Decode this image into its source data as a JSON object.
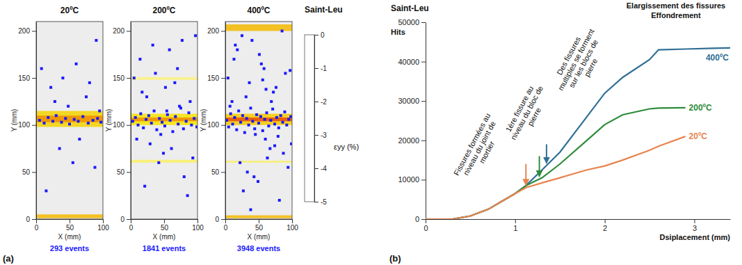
{
  "chart_data": [
    {
      "type": "scatter",
      "panel": "(a)",
      "title": "20ºC",
      "x_label": "X (mm)",
      "y_label": "Y (mm)",
      "events_label": "293 events",
      "xlim": [
        0,
        100
      ],
      "ylim": [
        0,
        210
      ],
      "xticks": [
        0,
        50,
        100
      ],
      "yticks": [
        0,
        50,
        100,
        150,
        200
      ],
      "color": "#1a1aff",
      "marker": "square",
      "x": [
        5,
        12,
        18,
        25,
        30,
        38,
        44,
        50,
        57,
        63,
        70,
        78,
        85,
        92,
        97,
        8,
        22,
        35,
        48,
        60,
        75,
        88,
        15,
        40,
        65,
        90,
        28,
        55,
        80,
        95
      ],
      "values": [
        105,
        102,
        108,
        104,
        110,
        103,
        107,
        101,
        106,
        104,
        109,
        102,
        105,
        107,
        103,
        160,
        140,
        75,
        120,
        165,
        130,
        55,
        30,
        150,
        85,
        190,
        125,
        60,
        145,
        115
      ],
      "strain_bands": [
        {
          "y": [
            98,
            115
          ],
          "value": -1.2
        },
        {
          "y": [
            103,
            110
          ],
          "value": -2
        },
        {
          "y": [
            1,
            5
          ],
          "value": -1.5
        }
      ]
    },
    {
      "type": "scatter",
      "title": "200ºC",
      "x_label": "X (mm)",
      "y_label": "Y (mm)",
      "events_label": "1841 events",
      "xlim": [
        0,
        100
      ],
      "ylim": [
        0,
        210
      ],
      "xticks": [
        0,
        50,
        100
      ],
      "yticks": [
        0,
        50,
        100,
        150,
        200
      ],
      "color": "#1a1aff",
      "marker": "square",
      "x": [
        3,
        7,
        11,
        15,
        19,
        23,
        27,
        31,
        35,
        39,
        43,
        47,
        51,
        55,
        59,
        63,
        67,
        71,
        75,
        79,
        83,
        87,
        91,
        95,
        99,
        5,
        14,
        24,
        33,
        42,
        52,
        61,
        70,
        80,
        89,
        97,
        9,
        21,
        37,
        49,
        58,
        73,
        85,
        93,
        17,
        45,
        66,
        29,
        77,
        54
      ],
      "values": [
        104,
        108,
        100,
        112,
        97,
        106,
        110,
        102,
        115,
        95,
        107,
        103,
        99,
        111,
        105,
        93,
        109,
        101,
        118,
        96,
        104,
        113,
        100,
        107,
        98,
        150,
        170,
        130,
        185,
        60,
        140,
        75,
        160,
        45,
        125,
        195,
        85,
        35,
        155,
        70,
        180,
        120,
        25,
        65,
        135,
        90,
        145,
        80,
        190,
        115
      ],
      "strain_bands": [
        {
          "y": [
            100,
            112
          ],
          "value": -1
        },
        {
          "y": [
            104,
            108
          ],
          "value": -2
        },
        {
          "y": [
            60,
            63
          ],
          "value": -0.6
        },
        {
          "y": [
            148,
            151
          ],
          "value": -0.5
        }
      ]
    },
    {
      "type": "scatter",
      "title": "400ºC",
      "x_label": "X (mm)",
      "y_label": "Y (mm)",
      "events_label": "3948 events",
      "xlim": [
        0,
        100
      ],
      "ylim": [
        0,
        210
      ],
      "xticks": [
        0,
        50,
        100
      ],
      "yticks": [
        0,
        50,
        100,
        150,
        200
      ],
      "color": "#1a1aff",
      "marker": "square",
      "x": [
        2,
        5,
        8,
        11,
        14,
        17,
        20,
        23,
        26,
        29,
        32,
        35,
        38,
        41,
        44,
        47,
        50,
        53,
        56,
        59,
        62,
        65,
        68,
        71,
        74,
        77,
        80,
        83,
        86,
        89,
        92,
        95,
        98,
        10,
        60,
        4,
        13,
        22,
        31,
        40,
        49,
        58,
        67,
        76,
        85,
        94,
        7,
        18,
        27,
        36,
        45,
        54,
        63,
        72,
        81,
        90,
        99,
        15,
        33,
        51,
        69,
        87,
        25,
        43,
        61,
        79,
        97,
        38,
        56,
        74
      ],
      "values": [
        105,
        98,
        112,
        101,
        108,
        95,
        115,
        103,
        110,
        92,
        107,
        100,
        118,
        104,
        96,
        111,
        102,
        109,
        94,
        106,
        113,
        99,
        105,
        117,
        101,
        108,
        97,
        110,
        103,
        114,
        100,
        106,
        109,
        125,
        85,
        150,
        170,
        60,
        130,
        190,
        40,
        160,
        75,
        140,
        200,
        55,
        120,
        180,
        30,
        145,
        90,
        165,
        65,
        135,
        20,
        155,
        80,
        185,
        50,
        175,
        125,
        70,
        195,
        45,
        138,
        88,
        158,
        10,
        148,
        78
      ],
      "strain_bands": [
        {
          "y": [
            100,
            112
          ],
          "value": -1.3
        },
        {
          "y": [
            104,
            108
          ],
          "value": -2.5
        },
        {
          "y": [
            200,
            207
          ],
          "value": -1.5
        },
        {
          "y": [
            60,
            62
          ],
          "value": -0.6
        },
        {
          "y": [
            1,
            4
          ],
          "value": -1.5
        }
      ]
    },
    {
      "type": "colorbar",
      "title": "Saint-Leu",
      "label": "εyy (%)",
      "ylim": [
        -5,
        0
      ],
      "yticks": [
        0,
        -1,
        -2,
        -3,
        -4,
        -5
      ],
      "colors": [
        "#ffffff",
        "#f5e400",
        "#f08c00",
        "#e01010",
        "#800000",
        "#000000"
      ]
    },
    {
      "type": "line",
      "panel": "(b)",
      "title": "Saint-Leu",
      "x_label": "Dsiplacement (mm)",
      "y_label": "Hits",
      "xlim": [
        0,
        3.4
      ],
      "ylim": [
        0,
        50000
      ],
      "xticks": [
        0,
        1,
        2,
        3
      ],
      "yticks": [
        0,
        10000,
        20000,
        30000,
        40000,
        50000
      ],
      "x": [
        0,
        0.3,
        0.5,
        0.7,
        0.85,
        1.0,
        1.12,
        1.3,
        1.5,
        1.8,
        2.0,
        2.2,
        2.5,
        2.6,
        2.9,
        3.4
      ],
      "series": [
        {
          "name": "400ºC",
          "color": "#2f6f95",
          "values": [
            0,
            0,
            800,
            2500,
            4500,
            6500,
            8500,
            12500,
            17000,
            26000,
            32000,
            36000,
            40500,
            43000,
            43200,
            43500
          ]
        },
        {
          "name": "200ºC",
          "color": "#2e8b3a",
          "values": [
            0,
            0,
            800,
            2500,
            4500,
            6500,
            8500,
            10500,
            14000,
            20000,
            24000,
            26500,
            28000,
            28200,
            28300,
            null
          ]
        },
        {
          "name": "20ºC",
          "color": "#e8844f",
          "values": [
            0,
            0,
            800,
            2500,
            4500,
            6500,
            8000,
            9200,
            10500,
            12500,
            13500,
            15000,
            17500,
            18500,
            21000,
            null
          ]
        }
      ],
      "annotations": [
        "Fissures formées au niveau du joint de mortier",
        "1ère fissure au niveau du bloc de pierre",
        "Des fissures multiples se forment sur les blocs de pierre",
        "Elargissement des fissures",
        "Effondrement"
      ],
      "arrows": [
        {
          "x": 1.12,
          "y": [
            14000,
            8600
          ],
          "color": "#e8844f"
        },
        {
          "x": 1.27,
          "y": [
            16000,
            10800
          ],
          "color": "#2e8b3a"
        },
        {
          "x": 1.35,
          "y": [
            19000,
            14200
          ],
          "color": "#2f6f95"
        }
      ]
    }
  ]
}
